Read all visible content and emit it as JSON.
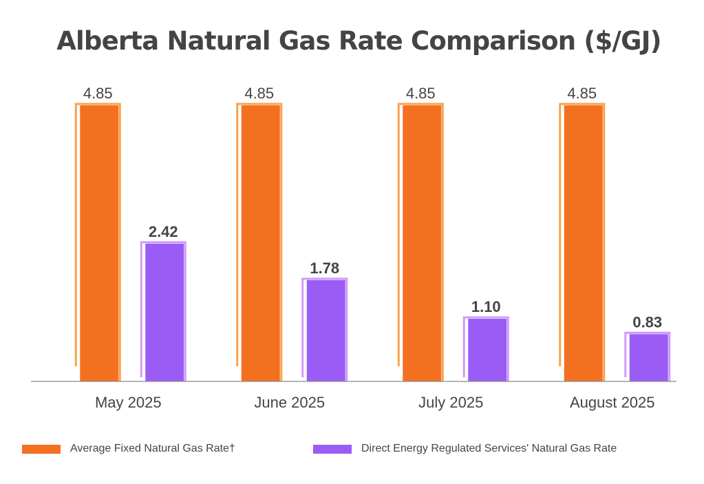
{
  "chart_data": {
    "type": "bar",
    "title": "Alberta Natural Gas Rate Comparison ($/GJ)",
    "categories": [
      "May 2025",
      "June 2025",
      "July 2025",
      "August 2025"
    ],
    "series": [
      {
        "name": "Average Fixed Natural Gas Rate†",
        "values": [
          4.85,
          4.85,
          4.85,
          4.85
        ],
        "labels": [
          "4.85",
          "4.85",
          "4.85",
          "4.85"
        ],
        "color": "#F37021",
        "outline_color": "#F9A24B",
        "label_bold": false
      },
      {
        "name": "Direct Energy Regulated Services' Natural Gas Rate",
        "values": [
          2.42,
          1.78,
          1.1,
          0.83
        ],
        "labels": [
          "2.42",
          "1.78",
          "1.10",
          "0.83"
        ],
        "color": "#9B5CF6",
        "outline_color": "#D09AFA",
        "label_bold": true
      }
    ],
    "xlabel": "",
    "ylabel": "",
    "ylim": [
      0,
      4.85
    ],
    "grid": false,
    "legend_position": "bottom"
  }
}
